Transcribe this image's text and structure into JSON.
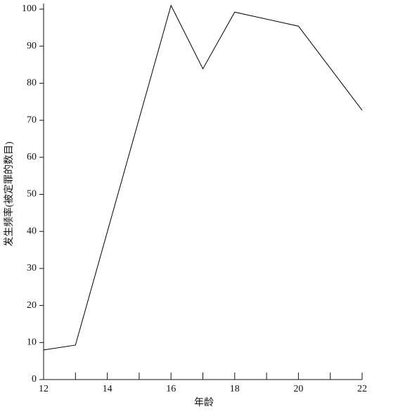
{
  "chart_data": {
    "type": "line",
    "xlabel": "年龄",
    "ylabel": "发生频率(被定罪的数目)",
    "x": [
      12,
      13,
      16,
      17,
      18,
      20,
      22
    ],
    "series": [
      {
        "color": "#000000",
        "values": [
          8,
          9.3,
          101,
          83.9,
          99.2,
          95.4,
          72.7
        ]
      }
    ],
    "xlim": [
      12,
      22
    ],
    "xticks": [
      12,
      14,
      16,
      18,
      20,
      22
    ],
    "xminorticks": [
      13,
      15,
      17,
      19,
      21
    ],
    "ylim": [
      0,
      100
    ],
    "yticks": [
      0,
      10,
      20,
      30,
      40,
      50,
      60,
      70,
      80,
      90,
      100
    ],
    "grid": false
  }
}
